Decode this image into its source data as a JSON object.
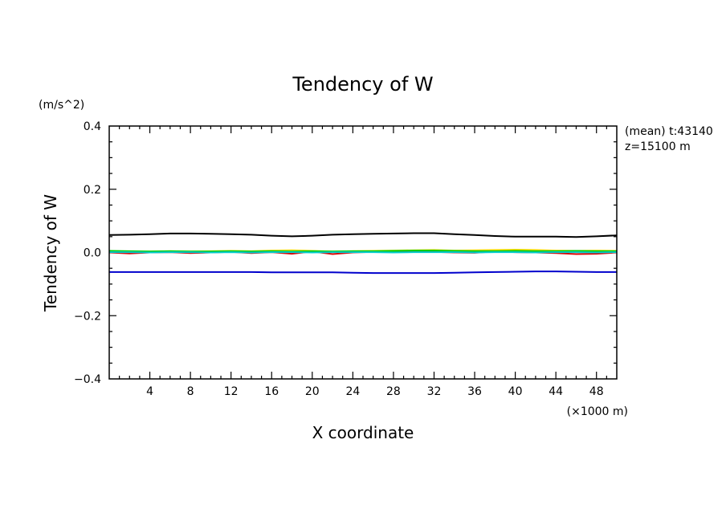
{
  "chart_data": {
    "type": "line",
    "title": "Tendency of W",
    "xlabel": "X coordinate",
    "ylabel": "Tendency of W",
    "x_unit": "(×1000 m)",
    "y_unit": "(m/s^2)",
    "xlim": [
      0,
      50
    ],
    "ylim": [
      -0.4,
      0.4
    ],
    "x_ticks": [
      "4",
      "8",
      "12",
      "16",
      "20",
      "24",
      "28",
      "32",
      "36",
      "40",
      "44",
      "48"
    ],
    "y_ticks": [
      "0.4",
      "0.2",
      "0.0",
      "−0.2",
      "−0.4"
    ],
    "annotations": [
      "(mean) t:43140",
      "z=15100 m"
    ],
    "grid": false,
    "x": [
      0,
      2,
      4,
      6,
      8,
      10,
      12,
      14,
      16,
      18,
      20,
      22,
      24,
      26,
      28,
      30,
      32,
      34,
      36,
      38,
      40,
      42,
      44,
      46,
      48,
      50
    ],
    "series": [
      {
        "color": "#000000",
        "values": [
          0.055,
          0.056,
          0.058,
          0.06,
          0.06,
          0.059,
          0.058,
          0.056,
          0.053,
          0.051,
          0.053,
          0.056,
          0.058,
          0.059,
          0.06,
          0.061,
          0.061,
          0.058,
          0.055,
          0.052,
          0.05,
          0.05,
          0.05,
          0.049,
          0.051,
          0.054
        ]
      },
      {
        "color": "#0000cc",
        "values": [
          -0.062,
          -0.062,
          -0.062,
          -0.062,
          -0.062,
          -0.062,
          -0.062,
          -0.062,
          -0.063,
          -0.063,
          -0.063,
          -0.063,
          -0.064,
          -0.065,
          -0.065,
          -0.065,
          -0.065,
          -0.064,
          -0.063,
          -0.062,
          -0.061,
          -0.06,
          -0.06,
          -0.061,
          -0.062,
          -0.062
        ]
      },
      {
        "color": "#dd0000",
        "values": [
          0.0,
          -0.003,
          0.0,
          0.001,
          -0.002,
          0.0,
          0.002,
          -0.002,
          0.001,
          -0.004,
          0.003,
          -0.005,
          0.0,
          0.002,
          0.001,
          0.003,
          0.002,
          0.0,
          -0.001,
          0.003,
          0.001,
          0.0,
          -0.002,
          -0.005,
          -0.004,
          0.0
        ]
      },
      {
        "color": "#ffdd00",
        "values": [
          0.004,
          0.002,
          0.003,
          0.004,
          0.003,
          0.004,
          0.005,
          0.004,
          0.006,
          0.007,
          0.005,
          0.003,
          0.004,
          0.005,
          0.006,
          0.007,
          0.008,
          0.006,
          0.007,
          0.008,
          0.009,
          0.008,
          0.006,
          0.005,
          0.006,
          0.005
        ]
      },
      {
        "color": "#00cc00",
        "values": [
          0.005,
          0.004,
          0.003,
          0.004,
          0.003,
          0.003,
          0.004,
          0.003,
          0.004,
          0.003,
          0.004,
          0.003,
          0.004,
          0.004,
          0.005,
          0.006,
          0.006,
          0.005,
          0.004,
          0.004,
          0.005,
          0.004,
          0.004,
          0.005,
          0.004,
          0.004
        ]
      },
      {
        "color": "#00cccc",
        "values": [
          0.001,
          0.001,
          0.0,
          0.001,
          0.001,
          0.0,
          0.001,
          0.0,
          0.001,
          0.001,
          0.0,
          0.001,
          0.001,
          0.001,
          0.0,
          0.001,
          0.001,
          0.001,
          0.0,
          0.001,
          0.001,
          0.0,
          0.001,
          0.001,
          0.0,
          0.001
        ]
      }
    ]
  }
}
